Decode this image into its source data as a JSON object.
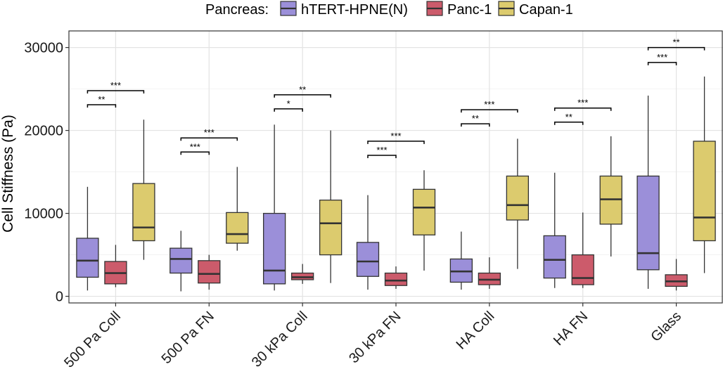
{
  "chart_data": {
    "type": "boxplot",
    "ylabel": "Cell Stiffness (Pa)",
    "xlabel": "",
    "ylim": [
      -800,
      32000
    ],
    "yticks": [
      0,
      10000,
      20000,
      30000
    ],
    "ytick_labels": [
      "0",
      "10000",
      "20000",
      "30000"
    ],
    "grid": true,
    "legend": {
      "title": "Pancreas:",
      "position": "top",
      "entries": [
        "hTERT-HPNE(N)",
        "Panc-1",
        "Capan-1"
      ]
    },
    "categories": [
      "500 Pa Coll",
      "500 Pa FN",
      "30 kPa Coll",
      "30 kPa FN",
      "HA Coll",
      "HA FN",
      "Glass"
    ],
    "series": [
      {
        "name": "hTERT-HPNE(N)",
        "color": "#9b8fd9",
        "boxes": [
          {
            "min": 700,
            "q1": 2300,
            "median": 4300,
            "q3": 7000,
            "max": 13200
          },
          {
            "min": 600,
            "q1": 2800,
            "median": 4500,
            "q3": 5800,
            "max": 7900
          },
          {
            "min": 700,
            "q1": 1500,
            "median": 3100,
            "q3": 10000,
            "max": 20700
          },
          {
            "min": 800,
            "q1": 2400,
            "median": 4200,
            "q3": 6500,
            "max": 12200
          },
          {
            "min": 800,
            "q1": 1700,
            "median": 3000,
            "q3": 4500,
            "max": 7800
          },
          {
            "min": 1000,
            "q1": 2200,
            "median": 4400,
            "q3": 7300,
            "max": 14900
          },
          {
            "min": 900,
            "q1": 3200,
            "median": 5200,
            "q3": 14500,
            "max": 24200
          }
        ]
      },
      {
        "name": "Panc-1",
        "color": "#cc5b6b",
        "boxes": [
          {
            "min": 1100,
            "q1": 1500,
            "median": 2800,
            "q3": 4200,
            "max": 6200
          },
          {
            "min": 800,
            "q1": 1600,
            "median": 2700,
            "q3": 4300,
            "max": 5000
          },
          {
            "min": 1500,
            "q1": 2000,
            "median": 2300,
            "q3": 2800,
            "max": 3900
          },
          {
            "min": 900,
            "q1": 1300,
            "median": 1900,
            "q3": 2800,
            "max": 3600
          },
          {
            "min": 900,
            "q1": 1400,
            "median": 2000,
            "q3": 2800,
            "max": 4700
          },
          {
            "min": 1000,
            "q1": 1400,
            "median": 2200,
            "q3": 5000,
            "max": 10100
          },
          {
            "min": 700,
            "q1": 1200,
            "median": 1800,
            "q3": 2600,
            "max": 4500
          }
        ]
      },
      {
        "name": "Capan-1",
        "color": "#dccb6e",
        "boxes": [
          {
            "min": 4400,
            "q1": 6700,
            "median": 8300,
            "q3": 13600,
            "max": 21300
          },
          {
            "min": 5500,
            "q1": 6400,
            "median": 7500,
            "q3": 10100,
            "max": 15600
          },
          {
            "min": 1600,
            "q1": 5000,
            "median": 8800,
            "q3": 11600,
            "max": 20000
          },
          {
            "min": 3100,
            "q1": 7400,
            "median": 10700,
            "q3": 12900,
            "max": 15200
          },
          {
            "min": 3300,
            "q1": 9200,
            "median": 11000,
            "q3": 14500,
            "max": 19000
          },
          {
            "min": 4800,
            "q1": 8700,
            "median": 11700,
            "q3": 14500,
            "max": 19300
          },
          {
            "min": 2800,
            "q1": 6700,
            "median": 9500,
            "q3": 18700,
            "max": 26500
          }
        ]
      }
    ],
    "significance": [
      {
        "category": 0,
        "lower": {
          "label": "**",
          "y": 23100
        },
        "upper": {
          "label": "***",
          "y": 24800
        }
      },
      {
        "category": 1,
        "lower": {
          "label": "***",
          "y": 17400
        },
        "upper": {
          "label": "***",
          "y": 19100
        }
      },
      {
        "category": 2,
        "lower": {
          "label": "*",
          "y": 22600
        },
        "upper": {
          "label": "**",
          "y": 24300
        }
      },
      {
        "category": 3,
        "lower": {
          "label": "***",
          "y": 17000
        },
        "upper": {
          "label": "***",
          "y": 18700
        }
      },
      {
        "category": 4,
        "lower": {
          "label": "**",
          "y": 20800
        },
        "upper": {
          "label": "***",
          "y": 22500
        }
      },
      {
        "category": 5,
        "lower": {
          "label": "**",
          "y": 21000
        },
        "upper": {
          "label": "***",
          "y": 22700
        }
      },
      {
        "category": 6,
        "lower": {
          "label": "***",
          "y": 28200
        },
        "upper": {
          "label": "**",
          "y": 30000
        }
      }
    ]
  }
}
